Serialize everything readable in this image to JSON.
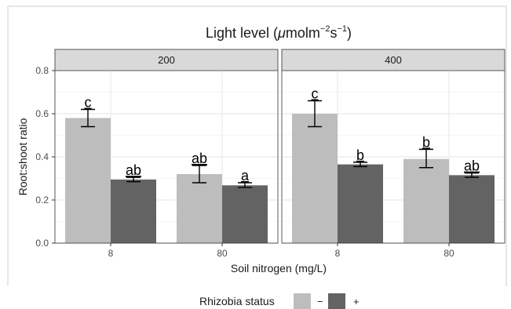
{
  "chart_data": {
    "type": "bar",
    "title_prefix": "Light level (",
    "title_mu": "μ",
    "title_unit": "molm",
    "title_exp1": "−2",
    "title_s": "s",
    "title_exp2": "−1",
    "title_suffix": ")",
    "xlabel": "Soil nitrogen (mg/L)",
    "ylabel": "Root:shoot ratio",
    "ylim": [
      0,
      0.8
    ],
    "yticks": [
      "0.0",
      "0.2",
      "0.4",
      "0.6",
      "0.8"
    ],
    "categories": [
      "8",
      "80"
    ],
    "series_labels": [
      "−",
      "+"
    ],
    "legend_title": "Rhizobia status",
    "legend_placement": "bottom",
    "grid": true,
    "colors": {
      "minus": "#bdbdbd",
      "plus": "#636363",
      "panel_bg": "#ffffff",
      "strip_bg": "#d9d9d9",
      "grid": "#ebebeb"
    },
    "panels": [
      {
        "label": "200",
        "groups": [
          {
            "category": "8",
            "bars": [
              {
                "series": "−",
                "value": 0.58,
                "err": [
                  0.54,
                  0.62
                ],
                "letter": "c"
              },
              {
                "series": "+",
                "value": 0.295,
                "err": [
                  0.285,
                  0.305
                ],
                "letter": "ab"
              }
            ]
          },
          {
            "category": "80",
            "bars": [
              {
                "series": "−",
                "value": 0.32,
                "err": [
                  0.28,
                  0.36
                ],
                "letter": "ab"
              },
              {
                "series": "+",
                "value": 0.268,
                "err": [
                  0.258,
                  0.28
                ],
                "letter": "a"
              }
            ]
          }
        ]
      },
      {
        "label": "400",
        "groups": [
          {
            "category": "8",
            "bars": [
              {
                "series": "−",
                "value": 0.6,
                "err": [
                  0.54,
                  0.66
                ],
                "letter": "c"
              },
              {
                "series": "+",
                "value": 0.365,
                "err": [
                  0.355,
                  0.375
                ],
                "letter": "b"
              }
            ]
          },
          {
            "category": "80",
            "bars": [
              {
                "series": "−",
                "value": 0.39,
                "err": [
                  0.35,
                  0.435
                ],
                "letter": "b"
              },
              {
                "series": "+",
                "value": 0.315,
                "err": [
                  0.305,
                  0.325
                ],
                "letter": "ab"
              }
            ]
          }
        ]
      }
    ]
  }
}
